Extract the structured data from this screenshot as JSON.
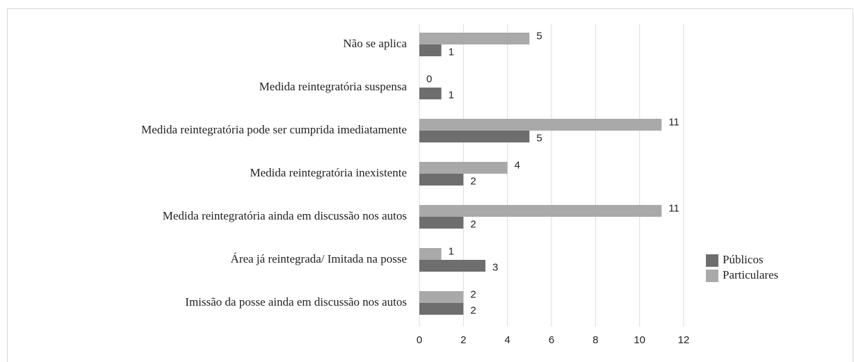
{
  "chart_data": {
    "type": "barh",
    "categories": [
      "Não se aplica",
      "Medida reintegratória suspensa",
      "Medida reintegratória pode ser cumprida imediatamente",
      "Medida reintegratória inexistente",
      "Medida reintegratória ainda em discussão nos autos",
      "Área já reintegrada/ Imitada na posse",
      "Imissão da posse ainda em discussão nos autos"
    ],
    "series": [
      {
        "name": "Públicos",
        "color": "#6e6e6e",
        "values": [
          1,
          1,
          5,
          2,
          2,
          3,
          2
        ]
      },
      {
        "name": "Particulares",
        "color": "#a9a9a9",
        "values": [
          5,
          0,
          11,
          4,
          11,
          1,
          2
        ]
      }
    ],
    "xlim": [
      0,
      12
    ],
    "xticks": [
      0,
      2,
      4,
      6,
      8,
      10,
      12
    ],
    "grid": true,
    "legend": "right"
  }
}
